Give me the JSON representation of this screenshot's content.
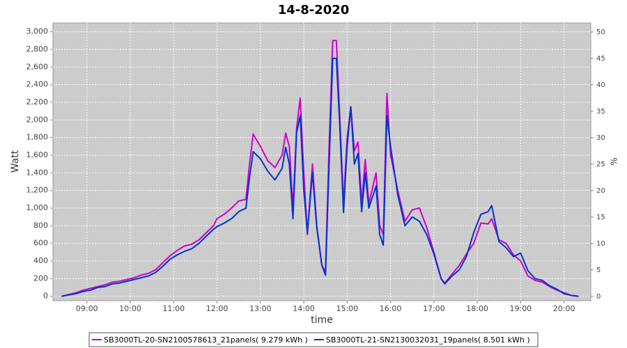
{
  "chart_data": {
    "type": "line",
    "title": "14-8-2020",
    "x_label": "time",
    "y_label": "Watt",
    "y2_label": "%",
    "x": [
      "08:25",
      "08:35",
      "08:45",
      "08:55",
      "09:05",
      "09:15",
      "09:25",
      "09:35",
      "09:45",
      "09:55",
      "10:05",
      "10:15",
      "10:25",
      "10:35",
      "10:45",
      "10:55",
      "11:05",
      "11:15",
      "11:25",
      "11:35",
      "11:45",
      "11:55",
      "12:00",
      "12:10",
      "12:20",
      "12:30",
      "12:40",
      "12:45",
      "12:50",
      "13:00",
      "13:10",
      "13:20",
      "13:30",
      "13:35",
      "13:40",
      "13:45",
      "13:50",
      "13:55",
      "14:00",
      "14:05",
      "14:12",
      "14:18",
      "14:25",
      "14:30",
      "14:35",
      "14:40",
      "14:45",
      "14:50",
      "14:55",
      "15:00",
      "15:05",
      "15:10",
      "15:15",
      "15:20",
      "15:25",
      "15:30",
      "15:40",
      "15:45",
      "15:50",
      "15:55",
      "16:00",
      "16:10",
      "16:20",
      "16:30",
      "16:40",
      "16:50",
      "17:00",
      "17:10",
      "17:15",
      "17:25",
      "17:35",
      "17:45",
      "17:55",
      "18:05",
      "18:15",
      "18:20",
      "18:30",
      "18:40",
      "18:50",
      "19:00",
      "19:10",
      "19:20",
      "19:30",
      "19:40",
      "19:50",
      "20:00",
      "20:10",
      "20:20"
    ],
    "series": [
      {
        "name": "SB3000TL-20-SN2100578613_21panels( 9.279 kWh )",
        "color": "#cc00cc",
        "values": [
          0,
          20,
          40,
          70,
          90,
          110,
          130,
          160,
          170,
          190,
          210,
          240,
          260,
          300,
          380,
          460,
          520,
          570,
          590,
          640,
          720,
          800,
          880,
          930,
          1000,
          1080,
          1100,
          1500,
          1840,
          1700,
          1540,
          1460,
          1600,
          1850,
          1700,
          1000,
          1900,
          2250,
          1400,
          700,
          1500,
          800,
          350,
          280,
          1700,
          2900,
          2900,
          2000,
          1050,
          1800,
          2150,
          1650,
          1750,
          1050,
          1550,
          1050,
          1400,
          800,
          700,
          2300,
          1600,
          1200,
          850,
          980,
          1000,
          780,
          500,
          200,
          150,
          250,
          350,
          480,
          600,
          830,
          820,
          880,
          640,
          600,
          470,
          400,
          230,
          180,
          160,
          110,
          70,
          40,
          10,
          0
        ]
      },
      {
        "name": "SB3000TL-21-SN2130032031_19panels( 8.501 kWh )",
        "color": "#0033cc",
        "values": [
          0,
          15,
          30,
          55,
          70,
          100,
          110,
          140,
          150,
          170,
          190,
          210,
          230,
          270,
          340,
          420,
          470,
          510,
          540,
          600,
          680,
          760,
          790,
          830,
          880,
          960,
          1000,
          1350,
          1640,
          1560,
          1420,
          1320,
          1450,
          1690,
          1500,
          880,
          1850,
          2050,
          1200,
          720,
          1400,
          780,
          350,
          240,
          1500,
          2700,
          2700,
          1900,
          950,
          1700,
          2150,
          1500,
          1620,
          960,
          1400,
          1000,
          1250,
          700,
          580,
          2050,
          1700,
          1150,
          800,
          900,
          850,
          700,
          480,
          200,
          140,
          230,
          300,
          450,
          720,
          930,
          960,
          1030,
          620,
          550,
          450,
          490,
          290,
          200,
          180,
          120,
          80,
          30,
          10,
          0
        ]
      }
    ],
    "xlim": [
      "08:13",
      "20:37"
    ],
    "xticks": [
      "09:00",
      "10:00",
      "11:00",
      "12:00",
      "13:00",
      "14:00",
      "15:00",
      "16:00",
      "17:00",
      "18:00",
      "19:00",
      "20:00"
    ],
    "ylim": [
      -50,
      3100
    ],
    "yticks": [
      0,
      200,
      400,
      600,
      800,
      {
        "value": 1000,
        "label": "1,000"
      },
      {
        "value": 1200,
        "label": "1,200"
      },
      {
        "value": 1400,
        "label": "1,400"
      },
      {
        "value": 1600,
        "label": "1,600"
      },
      {
        "value": 1800,
        "label": "1,800"
      },
      {
        "value": 2000,
        "label": "2,000"
      },
      {
        "value": 2200,
        "label": "2,200"
      },
      {
        "value": 2400,
        "label": "2,400"
      },
      {
        "value": 2600,
        "label": "2,600"
      },
      {
        "value": 2800,
        "label": "2,800"
      },
      {
        "value": 3000,
        "label": "3,000"
      }
    ],
    "y2lim": [
      -0.8,
      51.7
    ],
    "y2ticks": [
      0,
      5,
      10,
      15,
      20,
      25,
      30,
      35,
      40,
      45,
      50
    ],
    "grid": true,
    "legend": "bottom"
  }
}
